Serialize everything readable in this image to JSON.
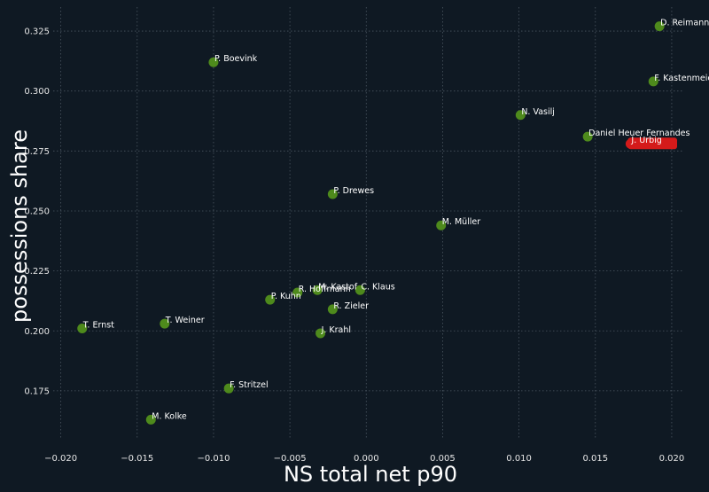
{
  "chart_data": {
    "type": "scatter",
    "xlabel": "NS total net p90",
    "ylabel": "possessions share",
    "xlim": [
      -0.0205,
      0.0207
    ],
    "ylim": [
      0.155,
      0.335
    ],
    "xticks": [
      -0.02,
      -0.015,
      -0.01,
      -0.005,
      0.0,
      0.005,
      0.01,
      0.015,
      0.02
    ],
    "xtick_labels": [
      "−0.020",
      "−0.015",
      "−0.010",
      "−0.005",
      "0.000",
      "0.005",
      "0.010",
      "0.015",
      "0.020"
    ],
    "yticks": [
      0.175,
      0.2,
      0.225,
      0.25,
      0.275,
      0.3,
      0.325
    ],
    "ytick_labels": [
      "0.175",
      "0.200",
      "0.225",
      "0.250",
      "0.275",
      "0.300",
      "0.325"
    ],
    "grid": true,
    "colors": {
      "default": "#4e8a1c",
      "highlight": "#d41a1a",
      "background": "#0f1923"
    },
    "points": [
      {
        "name": "D. Reimann",
        "x": 0.0192,
        "y": 0.327
      },
      {
        "name": "F. Kastenmeier",
        "x": 0.0188,
        "y": 0.304
      },
      {
        "name": "P. Boevink",
        "x": -0.01,
        "y": 0.312
      },
      {
        "name": "N. Vasilj",
        "x": 0.0101,
        "y": 0.29
      },
      {
        "name": "Daniel Heuer Fernandes",
        "x": 0.0145,
        "y": 0.281
      },
      {
        "name": "J. Urbig",
        "x": 0.0173,
        "y": 0.278,
        "highlight": true
      },
      {
        "name": "P. Drewes",
        "x": -0.0022,
        "y": 0.257
      },
      {
        "name": "M. Müller",
        "x": 0.0049,
        "y": 0.244
      },
      {
        "name": "C. Klaus",
        "x": -0.0004,
        "y": 0.217
      },
      {
        "name": "M. Kastof",
        "x": -0.0032,
        "y": 0.217
      },
      {
        "name": "R. Hoffmann",
        "x": -0.0045,
        "y": 0.216
      },
      {
        "name": "P. Kuhn",
        "x": -0.0063,
        "y": 0.213
      },
      {
        "name": "R. Zieler",
        "x": -0.0022,
        "y": 0.209
      },
      {
        "name": "T. Ernst",
        "x": -0.0186,
        "y": 0.201
      },
      {
        "name": "T. Weiner",
        "x": -0.0132,
        "y": 0.203
      },
      {
        "name": "J. Krahl",
        "x": -0.003,
        "y": 0.199
      },
      {
        "name": "F. Stritzel",
        "x": -0.009,
        "y": 0.176
      },
      {
        "name": "M. Kolke",
        "x": -0.0141,
        "y": 0.163
      }
    ]
  }
}
